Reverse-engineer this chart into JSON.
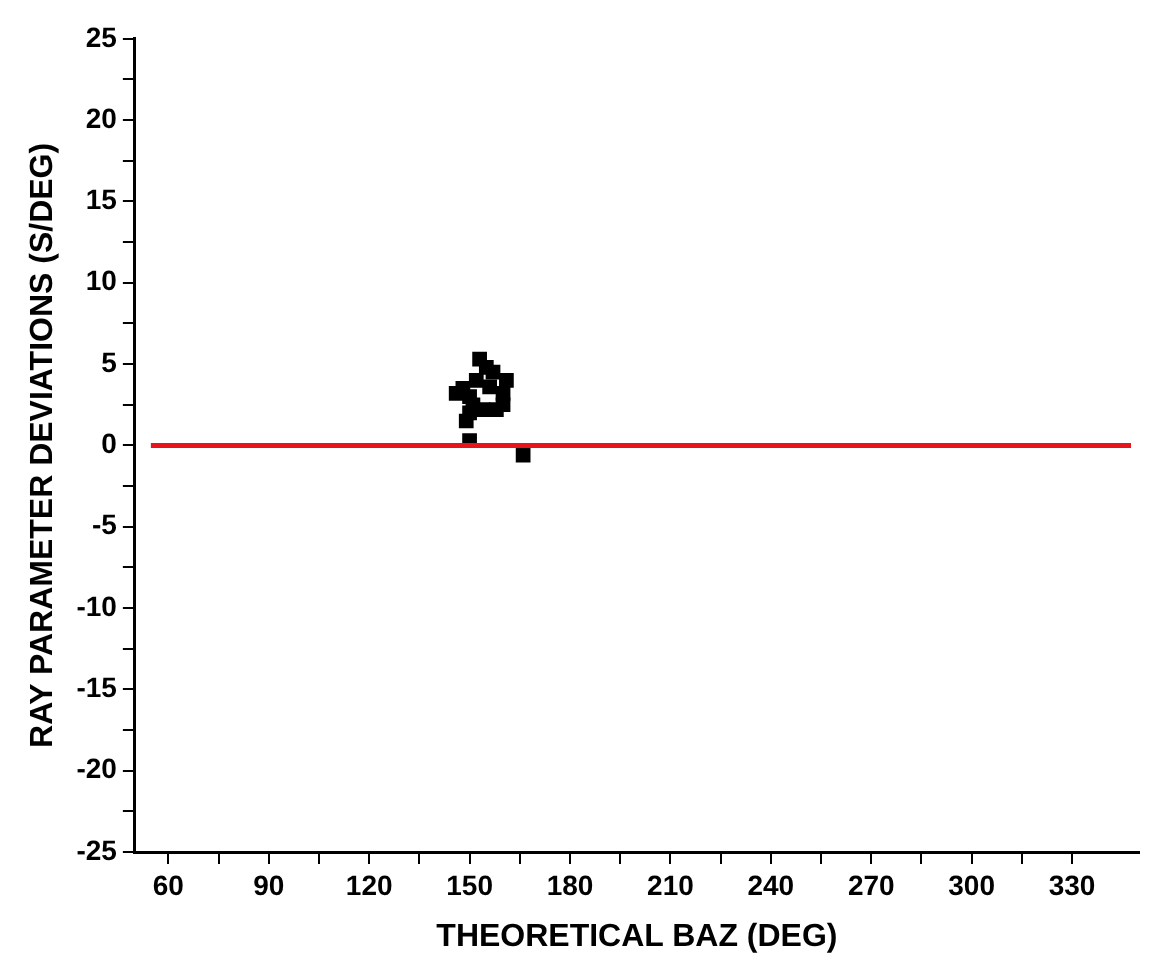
{
  "chart_data": {
    "type": "scatter",
    "xlabel": "THEORETICAL BAZ (DEG)",
    "ylabel": "RAY PARAMETER DEVIATIONS (S/DEG)",
    "x": [
      146,
      148,
      149,
      150,
      150,
      151,
      152,
      153,
      154,
      155,
      156,
      157,
      158,
      160,
      160,
      161,
      166,
      150
    ],
    "series": [
      {
        "color": "#000000",
        "values": [
          3.2,
          3.5,
          1.5,
          2.0,
          3.0,
          2.5,
          4.0,
          5.3,
          2.2,
          4.8,
          3.6,
          4.5,
          2.2,
          3.2,
          2.5,
          4.0,
          -0.6,
          0.3
        ]
      }
    ],
    "marker": "square",
    "grid": false,
    "legend": false,
    "xlim": [
      50,
      350
    ],
    "xticks": [
      60,
      {
        "value": 75,
        "label": null
      },
      90,
      {
        "value": 105,
        "label": null
      },
      120,
      {
        "value": 135,
        "label": null
      },
      150,
      {
        "value": 165,
        "label": null
      },
      180,
      {
        "value": 195,
        "label": null
      },
      210,
      {
        "value": 225,
        "label": null
      },
      240,
      {
        "value": 255,
        "label": null
      },
      270,
      {
        "value": 285,
        "label": null
      },
      300,
      {
        "value": 315,
        "label": null
      },
      330
    ],
    "ylim": [
      -25,
      25
    ],
    "yticks": [
      -25,
      {
        "value": -22.5,
        "label": null
      },
      -20,
      {
        "value": -17.5,
        "label": null
      },
      -15,
      {
        "value": -12.5,
        "label": null
      },
      -10,
      {
        "value": -7.5,
        "label": null
      },
      -5,
      {
        "value": -2.5,
        "label": null
      },
      0,
      {
        "value": 2.5,
        "label": null
      },
      5,
      {
        "value": 7.5,
        "label": null
      },
      10,
      {
        "value": 12.5,
        "label": null
      },
      15,
      {
        "value": 17.5,
        "label": null
      },
      20,
      {
        "value": 22.5,
        "label": null
      },
      25
    ],
    "ref_lines": [
      {
        "axis": "y",
        "value": 0,
        "color": "#e8141b",
        "line_style": "solid"
      }
    ]
  }
}
